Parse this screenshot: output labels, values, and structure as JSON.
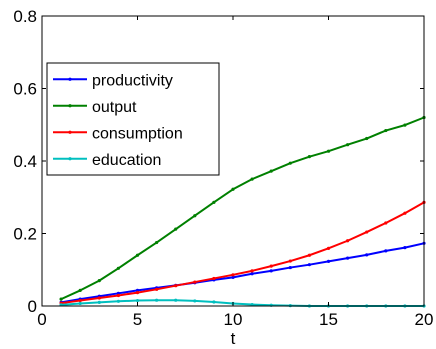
{
  "chart_data": {
    "type": "line",
    "title": "",
    "xlabel": "t",
    "ylabel": "",
    "xlim": [
      0,
      20
    ],
    "ylim": [
      0,
      0.8
    ],
    "xticks": [
      0,
      5,
      10,
      15,
      20
    ],
    "xtick_labels": [
      "0",
      "5",
      "10",
      "15",
      "20"
    ],
    "yticks": [
      0,
      0.2,
      0.4,
      0.6,
      0.8
    ],
    "ytick_labels": [
      "0",
      "0.2",
      "0.4",
      "0.6",
      "0.8"
    ],
    "grid": false,
    "legend_position": "top-left",
    "x": [
      1,
      2,
      3,
      4,
      5,
      6,
      7,
      8,
      9,
      10,
      11,
      12,
      13,
      14,
      15,
      16,
      17,
      18,
      19,
      20
    ],
    "series": [
      {
        "name": "productivity",
        "color": "#0000ff",
        "values": [
          0.01,
          0.019,
          0.027,
          0.035,
          0.043,
          0.05,
          0.057,
          0.064,
          0.072,
          0.079,
          0.089,
          0.097,
          0.106,
          0.114,
          0.123,
          0.132,
          0.141,
          0.152,
          0.161,
          0.173
        ]
      },
      {
        "name": "output",
        "color": "#008000",
        "values": [
          0.019,
          0.043,
          0.07,
          0.104,
          0.14,
          0.175,
          0.212,
          0.249,
          0.286,
          0.322,
          0.35,
          0.372,
          0.394,
          0.412,
          0.427,
          0.445,
          0.462,
          0.484,
          0.499,
          0.52
        ]
      },
      {
        "name": "consumption",
        "color": "#ff0000",
        "values": [
          0.008,
          0.015,
          0.022,
          0.029,
          0.037,
          0.046,
          0.056,
          0.066,
          0.076,
          0.086,
          0.097,
          0.11,
          0.124,
          0.14,
          0.159,
          0.18,
          0.204,
          0.229,
          0.256,
          0.286
        ]
      },
      {
        "name": "education",
        "color": "#00bfbf",
        "values": [
          0.003,
          0.007,
          0.01,
          0.013,
          0.015,
          0.016,
          0.016,
          0.014,
          0.011,
          0.007,
          0.004,
          0.002,
          0.001,
          0.0,
          0.0,
          0.0,
          0.0,
          0.0,
          0.0,
          0.0
        ]
      }
    ]
  }
}
